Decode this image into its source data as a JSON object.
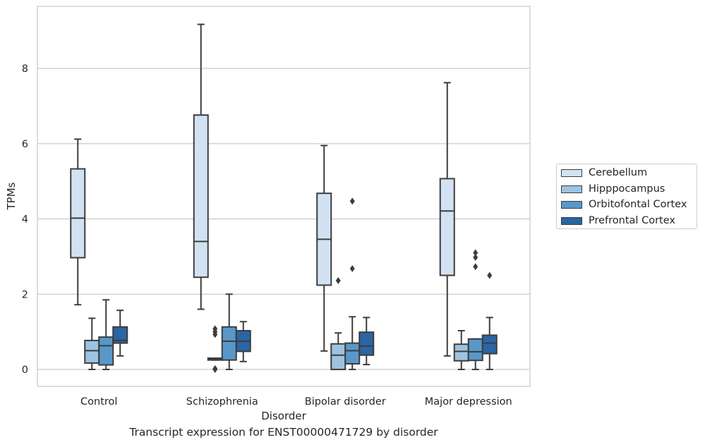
{
  "caption": "Transcript expression for ENST00000471729 by disorder",
  "chart_data": {
    "type": "boxplot",
    "xlabel": "Disorder",
    "ylabel": "TPMs",
    "ylim": [
      -0.45,
      9.65
    ],
    "yticks": [
      0,
      2,
      4,
      6,
      8
    ],
    "grid": true,
    "legend_position": "right",
    "categories": [
      "Control",
      "Schizophrenia",
      "Bipolar disorder",
      "Major depression"
    ],
    "series": [
      {
        "name": "Cerebellum",
        "color": "#d3e2f2",
        "boxes": [
          {
            "whisker_low": 1.72,
            "q1": 2.97,
            "median": 4.02,
            "q3": 5.33,
            "whisker_high": 6.12,
            "outliers": []
          },
          {
            "whisker_low": 1.6,
            "q1": 2.45,
            "median": 3.4,
            "q3": 6.76,
            "whisker_high": 9.17,
            "outliers": []
          },
          {
            "whisker_low": 0.49,
            "q1": 2.24,
            "median": 3.46,
            "q3": 4.68,
            "whisker_high": 5.95,
            "outliers": []
          },
          {
            "whisker_low": 0.36,
            "q1": 2.5,
            "median": 4.21,
            "q3": 5.07,
            "whisker_high": 7.62,
            "outliers": []
          }
        ]
      },
      {
        "name": "Hipppocampus",
        "color": "#9dc3e0",
        "boxes": [
          {
            "whisker_low": 0.0,
            "q1": 0.17,
            "median": 0.5,
            "q3": 0.77,
            "whisker_high": 1.36,
            "outliers": []
          },
          {
            "whisker_low": 0.25,
            "q1": 0.25,
            "median": 0.28,
            "q3": 0.3,
            "whisker_high": 0.3,
            "outliers": [
              0.0,
              0.02,
              0.93,
              1.0,
              1.08
            ]
          },
          {
            "whisker_low": 0.0,
            "q1": 0.0,
            "median": 0.38,
            "q3": 0.68,
            "whisker_high": 0.97,
            "outliers": [
              2.36
            ]
          },
          {
            "whisker_low": 0.0,
            "q1": 0.23,
            "median": 0.48,
            "q3": 0.67,
            "whisker_high": 1.03,
            "outliers": []
          }
        ]
      },
      {
        "name": "Orbitofontal Cortex",
        "color": "#5898c8",
        "boxes": [
          {
            "whisker_low": 0.0,
            "q1": 0.12,
            "median": 0.63,
            "q3": 0.86,
            "whisker_high": 1.85,
            "outliers": []
          },
          {
            "whisker_low": 0.0,
            "q1": 0.25,
            "median": 0.75,
            "q3": 1.13,
            "whisker_high": 2.0,
            "outliers": []
          },
          {
            "whisker_low": 0.0,
            "q1": 0.15,
            "median": 0.5,
            "q3": 0.7,
            "whisker_high": 1.4,
            "outliers": [
              2.68,
              4.47
            ]
          },
          {
            "whisker_low": 0.0,
            "q1": 0.24,
            "median": 0.47,
            "q3": 0.81,
            "whisker_high": 0.81,
            "outliers": [
              2.73,
              2.98,
              3.1
            ]
          }
        ]
      },
      {
        "name": "Prefrontal Cortex",
        "color": "#2a65a4",
        "boxes": [
          {
            "whisker_low": 0.36,
            "q1": 0.7,
            "median": 0.77,
            "q3": 1.13,
            "whisker_high": 1.57,
            "outliers": []
          },
          {
            "whisker_low": 0.21,
            "q1": 0.48,
            "median": 0.75,
            "q3": 1.03,
            "whisker_high": 1.27,
            "outliers": []
          },
          {
            "whisker_low": 0.13,
            "q1": 0.38,
            "median": 0.62,
            "q3": 0.99,
            "whisker_high": 1.38,
            "outliers": []
          },
          {
            "whisker_low": 0.0,
            "q1": 0.42,
            "median": 0.7,
            "q3": 0.91,
            "whisker_high": 1.38,
            "outliers": [
              2.5
            ]
          }
        ]
      }
    ]
  }
}
